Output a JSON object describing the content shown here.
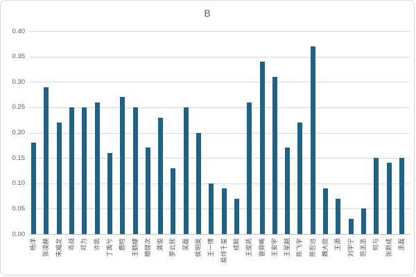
{
  "colors": {
    "bar": "#1F6287",
    "gridline": "#D9D9D9",
    "axis_line": "#BFBFBF",
    "label_text": "#595959",
    "chart_border": "#D9D9D9",
    "background": "#FFFFFF"
  },
  "chart_data": {
    "type": "bar",
    "title": "B",
    "xlabel": "",
    "ylabel": "",
    "categories": [
      "杨洋",
      "张凌赫",
      "宋威龙",
      "肖战",
      "邓为",
      "许凯",
      "丁禹兮",
      "鹿晗",
      "王鹤棣",
      "檀健次",
      "龚俊",
      "罗云熙",
      "吴磊",
      "侯明昊",
      "王一博",
      "易烊千玺",
      "成毅",
      "王俊凯",
      "曾舜晞",
      "王安宇",
      "王星越",
      "陈飞宇",
      "陈哲远",
      "魏大勋",
      "王源",
      "刘宇宁",
      "范丞丞",
      "何与",
      "张新成",
      "丞磊"
    ],
    "values": [
      0.18,
      0.29,
      0.22,
      0.25,
      0.25,
      0.26,
      0.16,
      0.27,
      0.25,
      0.17,
      0.23,
      0.13,
      0.25,
      0.2,
      0.1,
      0.09,
      0.07,
      0.26,
      0.34,
      0.31,
      0.17,
      0.22,
      0.37,
      0.09,
      0.07,
      0.03,
      0.05,
      0.15,
      0.14,
      0.15
    ],
    "ylim": [
      0,
      0.4
    ],
    "ytick_labels": [
      "0.00",
      "0.05",
      "0.10",
      "0.15",
      "0.20",
      "0.25",
      "0.30",
      "0.35",
      "0.40"
    ],
    "grid": "horizontal",
    "legend": "none",
    "x_label_rotation_degrees": -90
  }
}
